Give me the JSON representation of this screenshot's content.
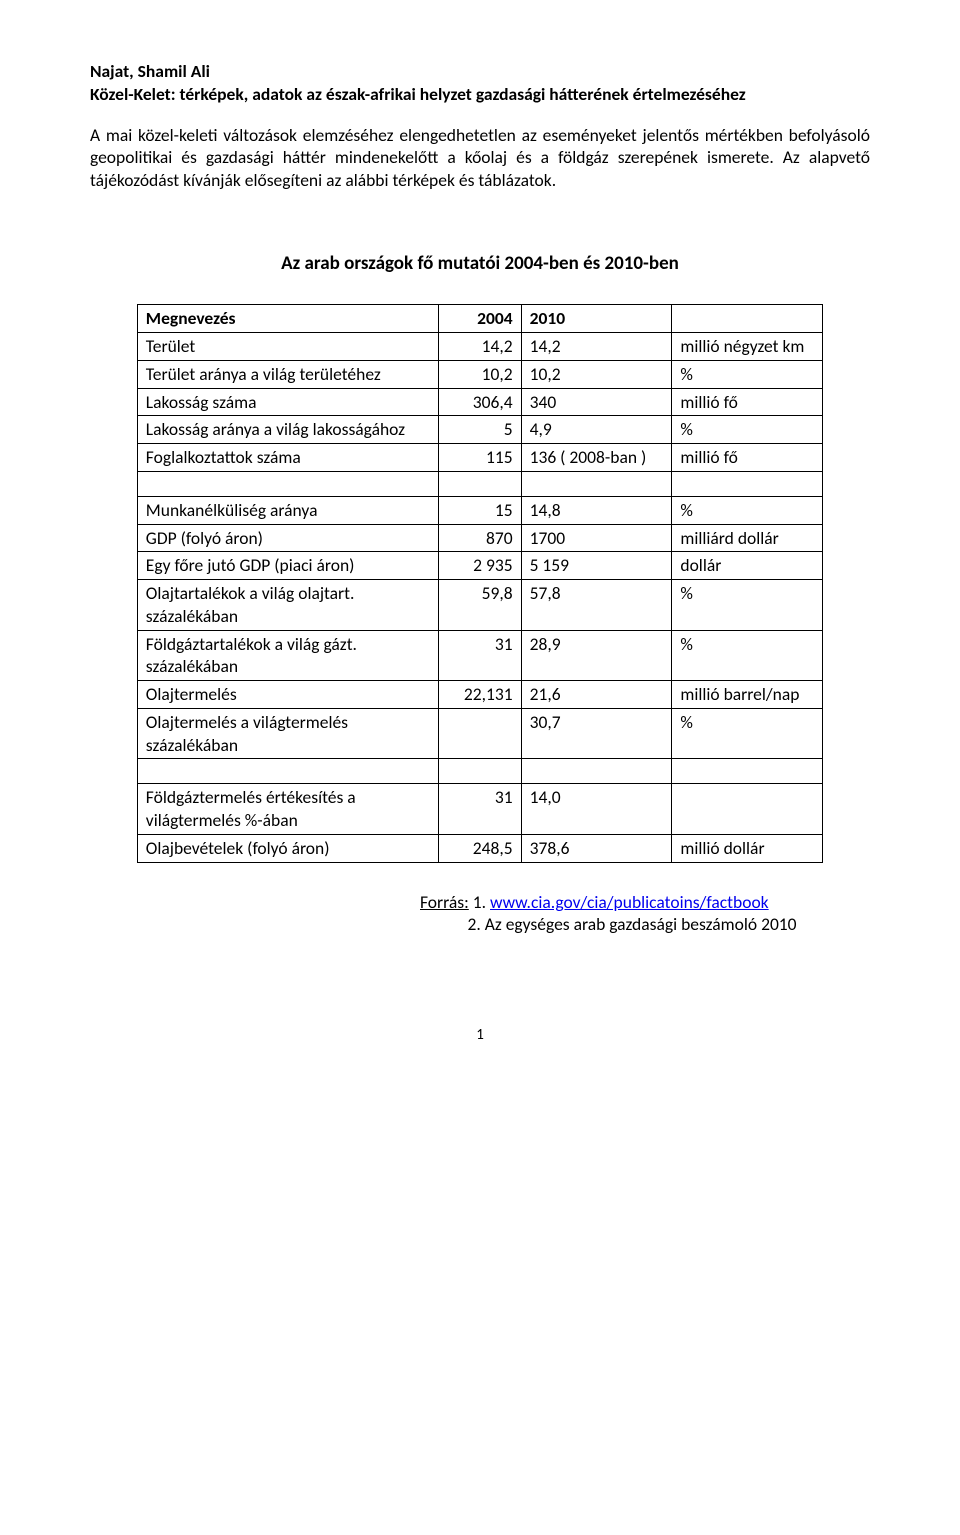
{
  "author": "Najat,  Shamil Ali",
  "title": "Közel-Kelet: térképek, adatok az észak-afrikai helyzet gazdasági hátterének értelmezéséhez",
  "intro": "A mai közel-keleti változások elemzéséhez elengedhetetlen az eseményeket jelentős mértékben befolyásoló geopolitikai és gazdasági háttér mindenekelőtt a kőolaj és a földgáz szerepének ismerete. Az alapvető tájékozódást kívánják elősegíteni az alábbi térképek és táblázatok.",
  "section_heading": "Az arab országok fő mutatói 2004-ben és 2010-ben",
  "header": {
    "c1": "Megnevezés",
    "c2": "2004",
    "c3": "2010",
    "c4": ""
  },
  "rows": [
    {
      "c1": "Terület",
      "c2": "14,2",
      "c3": "14,2",
      "c4": "millió négyzet km"
    },
    {
      "c1": "Terület aránya a világ területéhez",
      "c2": "10,2",
      "c3": "10,2",
      "c4": "%"
    },
    {
      "c1": "Lakosság száma",
      "c2": "306,4",
      "c3": "340",
      "c4": "millió fő"
    },
    {
      "c1": "Lakosság aránya a világ lakosságához",
      "c2": "5",
      "c3": "4,9",
      "c4": "%"
    },
    {
      "c1": "Foglalkoztattok száma",
      "c2": "115",
      "c3": "136 ( 2008-ban )",
      "c4": "millió fő"
    }
  ],
  "rows2": [
    {
      "c1": "Munkanélküliség aránya",
      "c2": "15",
      "c3": "14,8",
      "c4": "%"
    },
    {
      "c1": "GDP (folyó áron)",
      "c2": "870",
      "c3": "1700",
      "c4": "milliárd dollár"
    },
    {
      "c1": "Egy főre jutó GDP (piaci áron)",
      "c2": "2 935",
      "c3": "5 159",
      "c4": "dollár"
    },
    {
      "c1": "Olajtartalékok a világ olajtart. százalékában",
      "c2": "59,8",
      "c3": "57,8",
      "c4": "%"
    },
    {
      "c1": "Földgáztartalékok a világ gázt. százalékában",
      "c2": "31",
      "c3": "28,9",
      "c4": "%"
    },
    {
      "c1": "Olajtermelés",
      "c2": "22,131",
      "c3": "21,6",
      "c4": "millió barrel/nap"
    },
    {
      "c1": "Olajtermelés a világtermelés százalékában",
      "c2": "",
      "c3": "30,7",
      "c4": "%"
    }
  ],
  "rows3": [
    {
      "c1": "Földgáztermelés értékesítés a világtermelés  %-ában",
      "c2": "31",
      "c3": "14,0",
      "c4": ""
    },
    {
      "c1": "Olajbevételek  (folyó áron)",
      "c2": "248,5",
      "c3": "378,6",
      "c4": "millió dollár"
    }
  ],
  "sources": {
    "label": "Forrás:",
    "s1_prefix": "1. ",
    "s1_link_text": "www.cia.gov/cia/publicatoins/factbook",
    "s2": "2. Az egységes arab gazdasági beszámoló 2010"
  },
  "page_num": "1"
}
